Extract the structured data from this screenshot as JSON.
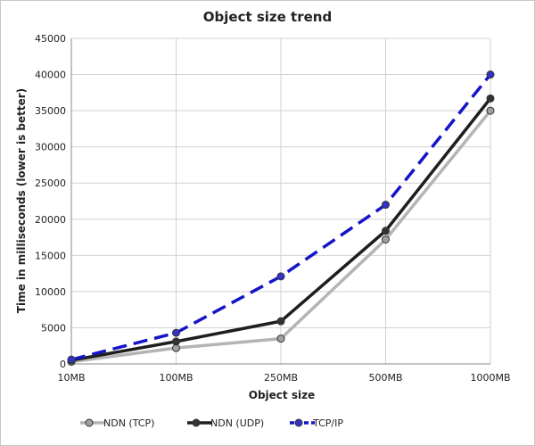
{
  "chart_data": {
    "type": "line",
    "title": "Object size trend",
    "xlabel": "Object size",
    "ylabel": "Time in milliseconds (lower is better)",
    "categories": [
      "10MB",
      "100MB",
      "250MB",
      "500MB",
      "1000MB"
    ],
    "ylim": [
      0,
      45000
    ],
    "yticks": [
      0,
      5000,
      10000,
      15000,
      20000,
      25000,
      30000,
      35000,
      40000,
      45000
    ],
    "grid": true,
    "legend_position": "bottom",
    "series": [
      {
        "name": "NDN (TCP)",
        "values": [
          300,
          2200,
          3500,
          17200,
          35000
        ],
        "color": "#b4b4b4",
        "marker_color": "#a0a0a0",
        "dash": "solid"
      },
      {
        "name": "NDN (UDP)",
        "values": [
          500,
          3100,
          5900,
          18400,
          36700
        ],
        "color": "#1e1e1e",
        "marker_color": "#333333",
        "dash": "solid"
      },
      {
        "name": "TCP/IP",
        "values": [
          600,
          4300,
          12100,
          22000,
          40000
        ],
        "color": "#1414c8",
        "marker_color": "#3232c8",
        "dash": "dashed"
      }
    ]
  }
}
